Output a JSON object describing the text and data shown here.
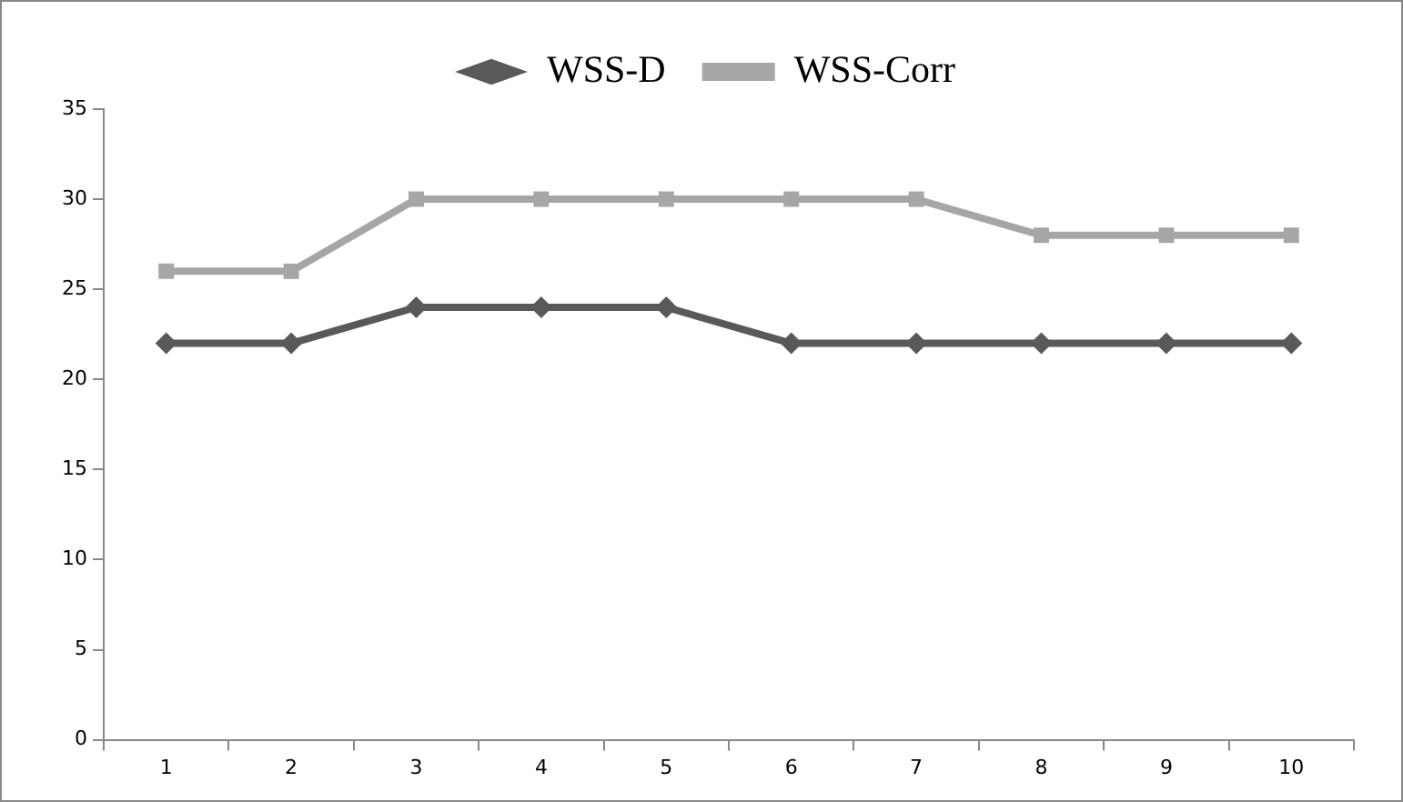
{
  "chart_data": {
    "type": "line",
    "categories": [
      "1",
      "2",
      "3",
      "4",
      "5",
      "6",
      "7",
      "8",
      "9",
      "10"
    ],
    "series": [
      {
        "name": "WSS-D",
        "color": "#595959",
        "marker": "diamond",
        "values": [
          22,
          22,
          24,
          24,
          24,
          22,
          22,
          22,
          22,
          22
        ]
      },
      {
        "name": "WSS-Corr",
        "color": "#a6a6a6",
        "marker": "square",
        "values": [
          26,
          26,
          30,
          30,
          30,
          30,
          30,
          28,
          28,
          28
        ]
      }
    ],
    "ylim": [
      0,
      35
    ],
    "yticks": [
      0,
      5,
      10,
      15,
      20,
      25,
      30,
      35
    ],
    "grid": false,
    "legend": "top",
    "line_style": "solid"
  }
}
